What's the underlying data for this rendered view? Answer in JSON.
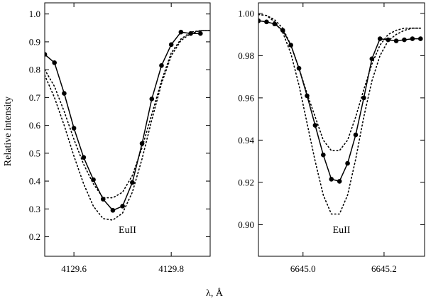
{
  "figure": {
    "ylabel": "Relative intensity",
    "xlabel": "λ, Å"
  },
  "chart_data": [
    {
      "type": "line",
      "annotation": "EuII",
      "xlim": [
        4129.54,
        4129.88
      ],
      "ylim": [
        0.13,
        1.04
      ],
      "xticks": [
        4129.6,
        4129.8
      ],
      "xtick_labels": [
        "4129.6",
        "4129.8"
      ],
      "yticks": [
        0.2,
        0.3,
        0.4,
        0.5,
        0.6,
        0.7,
        0.8,
        0.9,
        1.0
      ],
      "ytick_labels": [
        "0.2",
        "0.3",
        "0.4",
        "0.5",
        "0.6",
        "0.7",
        "0.8",
        "0.9",
        "1.0"
      ],
      "series": [
        {
          "style": "solid-markers",
          "x": [
            4129.54,
            4129.56,
            4129.58,
            4129.6,
            4129.62,
            4129.64,
            4129.66,
            4129.68,
            4129.7,
            4129.72,
            4129.74,
            4129.76,
            4129.78,
            4129.8,
            4129.82,
            4129.84,
            4129.86
          ],
          "y": [
            0.855,
            0.825,
            0.715,
            0.59,
            0.485,
            0.405,
            0.335,
            0.295,
            0.31,
            0.395,
            0.535,
            0.695,
            0.815,
            0.89,
            0.935,
            0.93,
            0.93
          ]
        },
        {
          "style": "dotted",
          "x": [
            4129.54,
            4129.56,
            4129.58,
            4129.6,
            4129.62,
            4129.64,
            4129.66,
            4129.68,
            4129.7,
            4129.72,
            4129.74,
            4129.76,
            4129.78,
            4129.8,
            4129.82,
            4129.84,
            4129.86,
            4129.88
          ],
          "y": [
            0.8,
            0.74,
            0.65,
            0.55,
            0.46,
            0.39,
            0.34,
            0.34,
            0.36,
            0.42,
            0.52,
            0.64,
            0.76,
            0.86,
            0.91,
            0.935,
            0.94,
            0.94
          ]
        },
        {
          "style": "dotted",
          "x": [
            4129.54,
            4129.56,
            4129.58,
            4129.6,
            4129.62,
            4129.64,
            4129.66,
            4129.68,
            4129.7,
            4129.72,
            4129.74,
            4129.76,
            4129.78,
            4129.8,
            4129.82,
            4129.84,
            4129.86,
            4129.88
          ],
          "y": [
            0.78,
            0.7,
            0.6,
            0.49,
            0.39,
            0.31,
            0.265,
            0.26,
            0.285,
            0.36,
            0.48,
            0.62,
            0.75,
            0.85,
            0.905,
            0.93,
            0.94,
            0.94
          ]
        }
      ]
    },
    {
      "type": "line",
      "annotation": "EuII",
      "xlim": [
        6644.89,
        6645.3
      ],
      "ylim": [
        0.885,
        1.005
      ],
      "xticks": [
        6645.0,
        6645.2
      ],
      "xtick_labels": [
        "6645.0",
        "6645.2"
      ],
      "yticks": [
        0.9,
        0.92,
        0.94,
        0.96,
        0.98,
        1.0
      ],
      "ytick_labels": [
        "0.90",
        "0.92",
        "0.94",
        "0.96",
        "0.98",
        "1.00"
      ],
      "series": [
        {
          "style": "solid-markers",
          "x": [
            6644.89,
            6644.91,
            6644.93,
            6644.95,
            6644.97,
            6644.99,
            6645.01,
            6645.03,
            6645.05,
            6645.07,
            6645.09,
            6645.11,
            6645.13,
            6645.15,
            6645.17,
            6645.19,
            6645.21,
            6645.23,
            6645.25,
            6645.27,
            6645.29
          ],
          "y": [
            0.9965,
            0.996,
            0.995,
            0.992,
            0.985,
            0.974,
            0.961,
            0.947,
            0.933,
            0.9215,
            0.9205,
            0.929,
            0.9425,
            0.96,
            0.9785,
            0.988,
            0.9875,
            0.987,
            0.9875,
            0.988,
            0.988
          ]
        },
        {
          "style": "dotted",
          "x": [
            6644.89,
            6644.91,
            6644.93,
            6644.95,
            6644.97,
            6644.99,
            6645.01,
            6645.03,
            6645.05,
            6645.07,
            6645.09,
            6645.11,
            6645.13,
            6645.15,
            6645.17,
            6645.19,
            6645.21,
            6645.23,
            6645.25,
            6645.27,
            6645.29
          ],
          "y": [
            0.9995,
            0.999,
            0.997,
            0.993,
            0.985,
            0.974,
            0.962,
            0.951,
            0.94,
            0.935,
            0.935,
            0.94,
            0.951,
            0.964,
            0.976,
            0.985,
            0.99,
            0.992,
            0.993,
            0.993,
            0.993
          ]
        },
        {
          "style": "dotted",
          "x": [
            6644.89,
            6644.91,
            6644.93,
            6644.95,
            6644.97,
            6644.99,
            6645.01,
            6645.03,
            6645.05,
            6645.07,
            6645.09,
            6645.11,
            6645.13,
            6645.15,
            6645.17,
            6645.19,
            6645.21,
            6645.23,
            6645.25,
            6645.27,
            6645.29
          ],
          "y": [
            0.9995,
            0.999,
            0.996,
            0.991,
            0.981,
            0.966,
            0.948,
            0.93,
            0.914,
            0.905,
            0.905,
            0.914,
            0.931,
            0.951,
            0.968,
            0.98,
            0.987,
            0.99,
            0.992,
            0.993,
            0.993
          ]
        }
      ]
    }
  ]
}
